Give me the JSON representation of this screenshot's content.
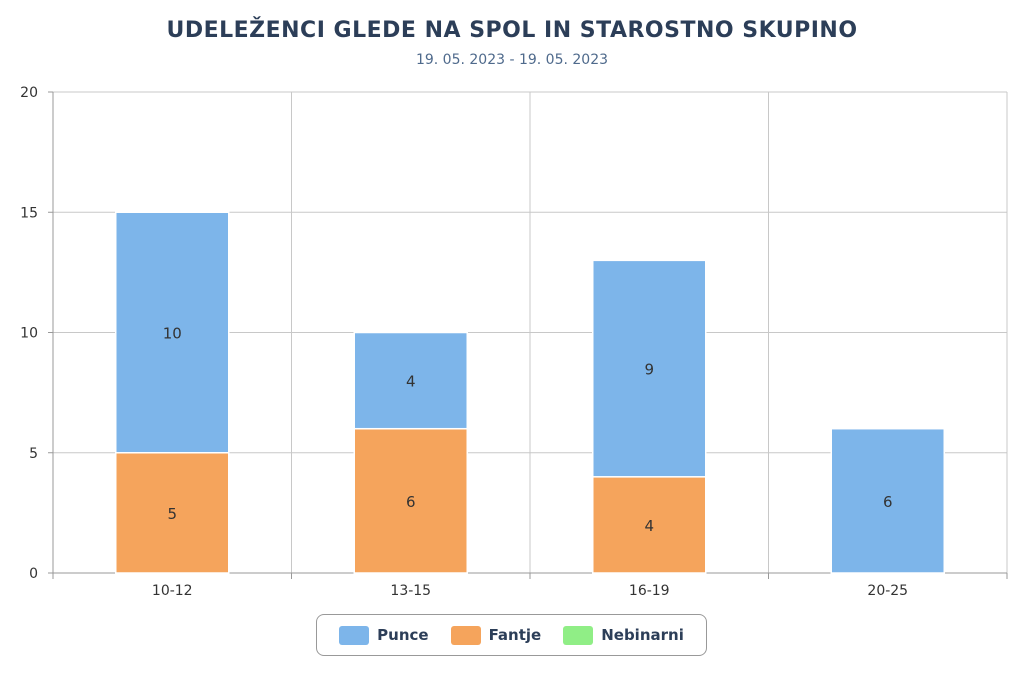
{
  "chart_data": {
    "type": "bar",
    "stacked": true,
    "title": "UDELEŽENCI GLEDE NA SPOL IN STAROSTNO SKUPINO",
    "subtitle": "19. 05. 2023 - 19. 05. 2023",
    "categories": [
      "10-12",
      "13-15",
      "16-19",
      "20-25"
    ],
    "series": [
      {
        "name": "Fantje",
        "values": [
          5,
          6,
          4,
          0
        ],
        "color": "#f5a45c"
      },
      {
        "name": "Punce",
        "values": [
          10,
          4,
          9,
          6
        ],
        "color": "#7db5ea"
      },
      {
        "name": "Nebinarni",
        "values": [
          0,
          0,
          0,
          0
        ],
        "color": "#90ee86"
      }
    ],
    "legend_order": [
      "Punce",
      "Fantje",
      "Nebinarni"
    ],
    "y_ticks": [
      "0",
      "5",
      "10",
      "15",
      "20"
    ],
    "ylim": [
      0,
      20
    ],
    "grid": true,
    "legend_position": "bottom"
  }
}
